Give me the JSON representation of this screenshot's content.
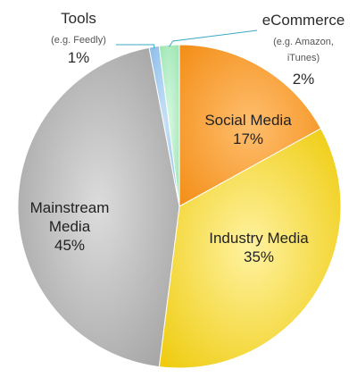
{
  "chart_data": {
    "type": "pie",
    "title": "",
    "start_angle_deg": 0,
    "direction": "clockwise",
    "slices": [
      {
        "name": "Social Media",
        "sub": "",
        "value": 17,
        "pct_label": "17%",
        "color": "#F7A13A",
        "gradient": [
          "#FFBE6E",
          "#F28A10"
        ],
        "label_position": "inside"
      },
      {
        "name": "Industry Media",
        "sub": "",
        "value": 35,
        "pct_label": "35%",
        "color": "#F2DA3A",
        "gradient": [
          "#FFF2A0",
          "#EDC800"
        ],
        "label_position": "inside"
      },
      {
        "name": "Mainstream Media",
        "name_lines": [
          "Mainstream",
          "Media"
        ],
        "sub": "",
        "value": 45,
        "pct_label": "45%",
        "color": "#BDBDBD",
        "gradient": [
          "#DCDCDC",
          "#9A9A9A"
        ],
        "label_position": "inside"
      },
      {
        "name": "Tools",
        "sub": "(e.g. Feedly)",
        "sub_lines": [
          "(e.g. Feedly)"
        ],
        "value": 1,
        "pct_label": "1%",
        "color": "#A8CFF0",
        "gradient": [
          "#C9E2F7",
          "#85B9E6"
        ],
        "label_position": "outside-left"
      },
      {
        "name": "eCommerce",
        "sub": "(e.g. Amazon, iTunes)",
        "sub_lines": [
          "(e.g. Amazon,",
          "iTunes)"
        ],
        "value": 2,
        "pct_label": "2%",
        "color": "#B7EFC8",
        "gradient": [
          "#D6F8E1",
          "#96E3AD"
        ],
        "label_position": "outside-right"
      }
    ],
    "leader_line_color": "#3BA9C6"
  }
}
